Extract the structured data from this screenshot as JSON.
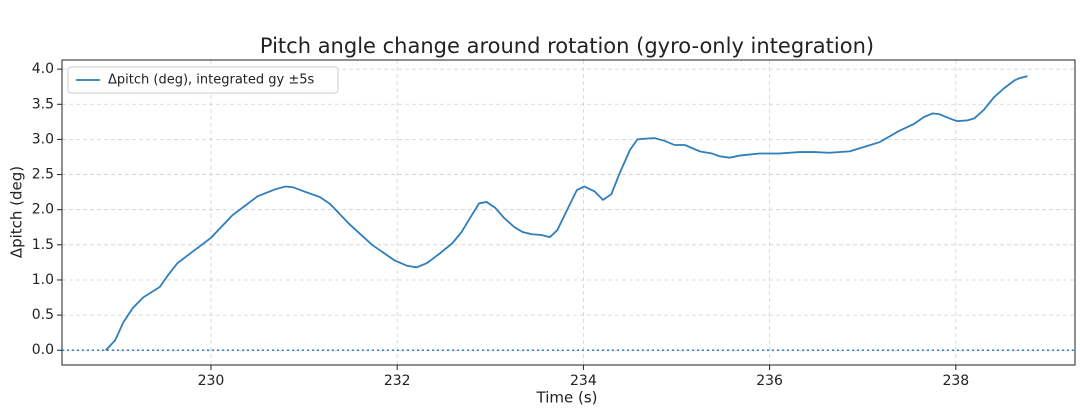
{
  "chart_data": {
    "type": "line",
    "title": "Pitch angle change around rotation (gyro-only integration)",
    "x_label": "Time (s)",
    "y_label": "Δpitch (deg)",
    "x": [
      228.87,
      228.97,
      229.06,
      229.16,
      229.27,
      229.45,
      229.54,
      229.64,
      229.77,
      230.0,
      230.23,
      230.5,
      230.69,
      230.8,
      230.88,
      231.0,
      231.17,
      231.28,
      231.49,
      231.73,
      231.97,
      232.11,
      232.21,
      232.32,
      232.46,
      232.59,
      232.69,
      232.8,
      232.88,
      232.96,
      233.05,
      233.15,
      233.26,
      233.35,
      233.45,
      233.55,
      233.64,
      233.72,
      233.83,
      233.93,
      234.01,
      234.12,
      234.21,
      234.3,
      234.39,
      234.5,
      234.58,
      234.76,
      234.87,
      234.98,
      235.09,
      235.25,
      235.38,
      235.46,
      235.57,
      235.68,
      235.89,
      236.1,
      236.32,
      236.48,
      236.64,
      236.86,
      236.96,
      237.18,
      237.39,
      237.55,
      237.66,
      237.75,
      237.82,
      237.93,
      238.01,
      238.12,
      238.2,
      238.3,
      238.41,
      238.52,
      238.63,
      238.68,
      238.77
    ],
    "series": [
      {
        "name": "Δpitch (deg), integrated gy ±5s",
        "color": "#2e7ebc",
        "values": [
          0.0,
          0.14,
          0.4,
          0.6,
          0.75,
          0.9,
          1.07,
          1.24,
          1.37,
          1.6,
          1.92,
          2.19,
          2.29,
          2.33,
          2.32,
          2.26,
          2.18,
          2.08,
          1.79,
          1.5,
          1.28,
          1.2,
          1.18,
          1.24,
          1.38,
          1.52,
          1.68,
          1.92,
          2.09,
          2.11,
          2.03,
          1.88,
          1.75,
          1.68,
          1.65,
          1.64,
          1.61,
          1.71,
          2.01,
          2.28,
          2.33,
          2.26,
          2.14,
          2.22,
          2.52,
          2.85,
          3.0,
          3.02,
          2.98,
          2.92,
          2.92,
          2.83,
          2.8,
          2.76,
          2.74,
          2.77,
          2.8,
          2.8,
          2.82,
          2.82,
          2.81,
          2.83,
          2.87,
          2.96,
          3.12,
          3.22,
          3.32,
          3.37,
          3.36,
          3.3,
          3.26,
          3.27,
          3.3,
          3.42,
          3.6,
          3.73,
          3.84,
          3.87,
          3.9
        ]
      }
    ],
    "hline": 0,
    "xlim": [
      228.4,
      239.28
    ],
    "ylim": [
      -0.21,
      4.13
    ],
    "xticks": [
      230,
      232,
      234,
      236,
      238
    ],
    "yticks": [
      {
        "value": 0,
        "label": "0.0"
      },
      0.5,
      {
        "value": 1,
        "label": "1.0"
      },
      1.5,
      {
        "value": 2,
        "label": "2.0"
      },
      2.5,
      {
        "value": 3,
        "label": "3.0"
      },
      3.5,
      {
        "value": 4,
        "label": "4.0"
      }
    ],
    "grid": true,
    "legend": "upper left"
  }
}
